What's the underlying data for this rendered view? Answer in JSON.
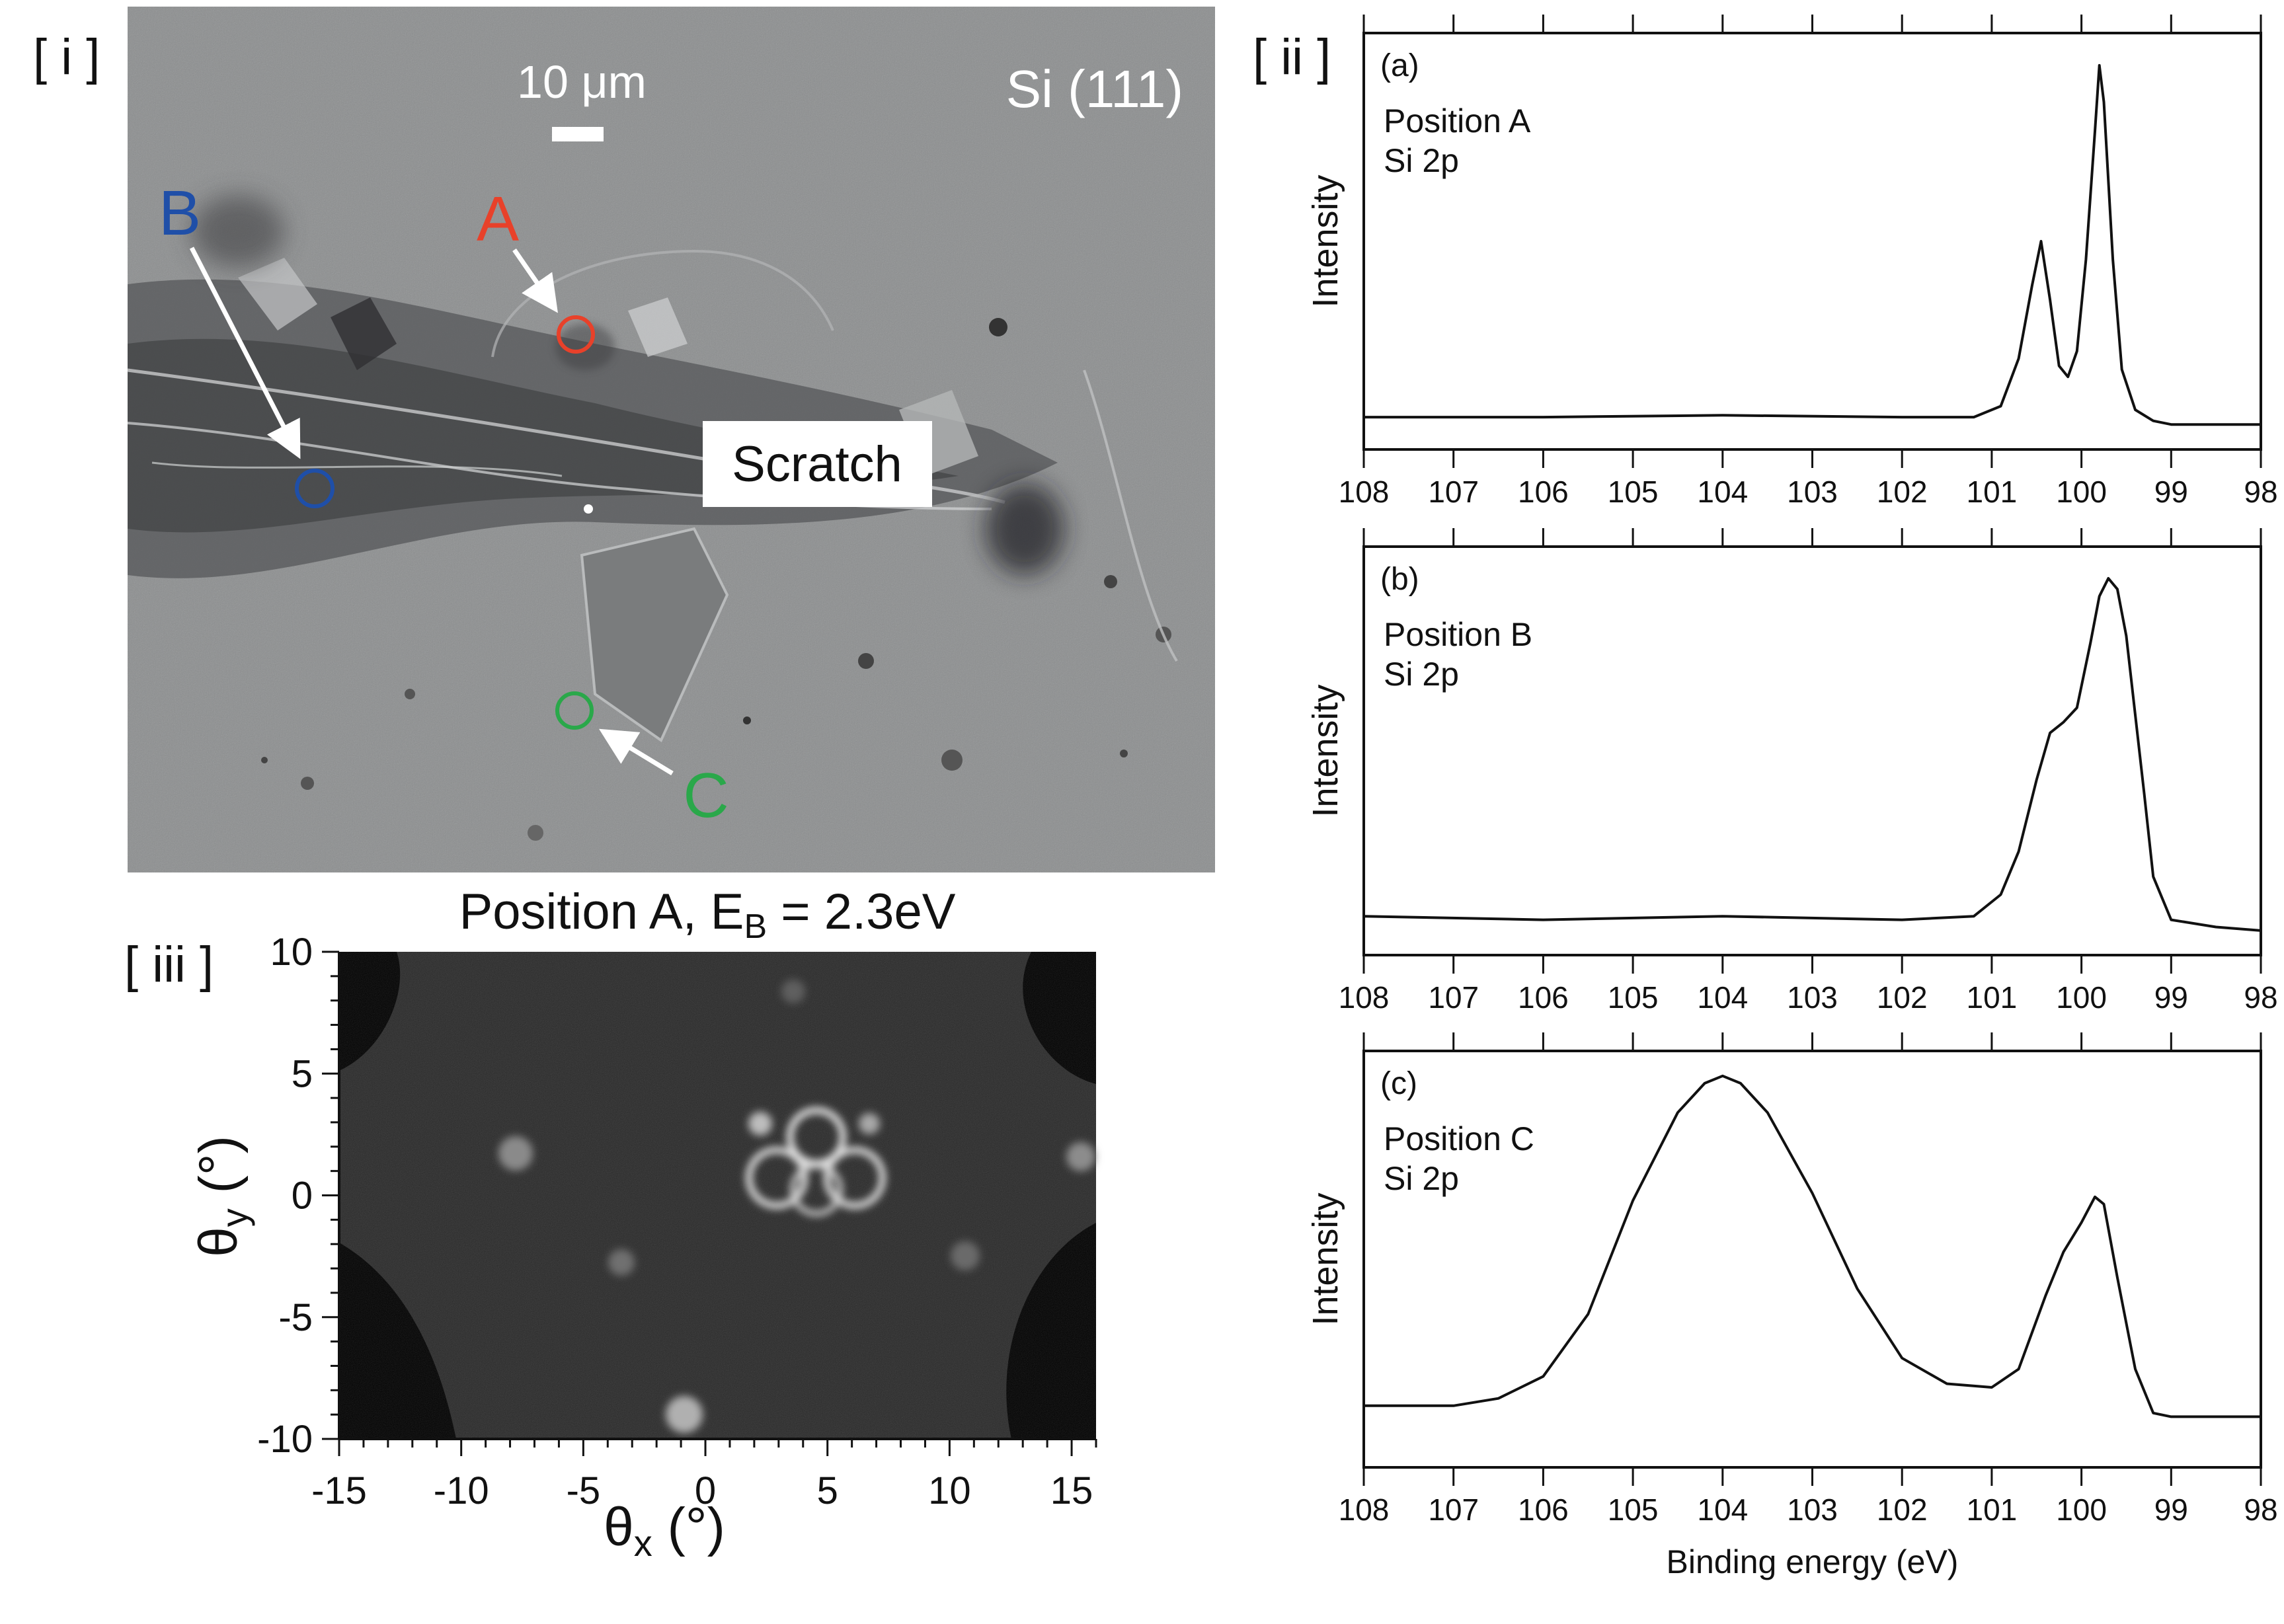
{
  "panel_labels": {
    "i": "[ i ]",
    "ii": "[ ii ]",
    "iii": "[ iii ]"
  },
  "micrograph": {
    "scale_bar_label": "10 μm",
    "crystal_label": "Si (111)",
    "scratch_label": "Scratch",
    "markers": [
      {
        "label": "A",
        "color": "#e8412a"
      },
      {
        "label": "B",
        "color": "#1f4fa8"
      },
      {
        "label": "C",
        "color": "#2aa84a"
      }
    ]
  },
  "diffraction_map": {
    "title": "Position A,  E",
    "title_sub": "B",
    "title_suffix": " = 2.3eV",
    "xlabel": "θ",
    "xlabel_sub": "x",
    "xlabel_unit": " (°)",
    "ylabel": "θ",
    "ylabel_sub": "y",
    "ylabel_unit": " (°)",
    "x_ticks": [
      "-15",
      "-10",
      "-5",
      "0",
      "5",
      "10",
      "15"
    ],
    "y_ticks": [
      "10",
      "5",
      "0",
      "-5",
      "-10"
    ],
    "xlim": [
      -15,
      16
    ],
    "ylim": [
      -10,
      10
    ]
  },
  "chart_data": [
    {
      "type": "line",
      "panel": "(a)",
      "annotation_lines": [
        "Position A",
        "Si 2p"
      ],
      "ylabel": "Intensity",
      "xlabel": "",
      "xlim": [
        108,
        98
      ],
      "x_ticks": [
        "108",
        "107",
        "106",
        "105",
        "104",
        "103",
        "102",
        "101",
        "100",
        "99",
        "98"
      ],
      "x": [
        108.0,
        106.0,
        104.0,
        102.0,
        101.2,
        100.9,
        100.7,
        100.55,
        100.45,
        100.35,
        100.25,
        100.15,
        100.05,
        99.95,
        99.85,
        99.8,
        99.75,
        99.65,
        99.55,
        99.4,
        99.2,
        99.0,
        98.0
      ],
      "y": [
        0.02,
        0.02,
        0.025,
        0.02,
        0.02,
        0.05,
        0.18,
        0.38,
        0.5,
        0.34,
        0.16,
        0.13,
        0.2,
        0.45,
        0.8,
        0.98,
        0.88,
        0.45,
        0.15,
        0.04,
        0.01,
        0.0,
        0.0
      ]
    },
    {
      "type": "line",
      "panel": "(b)",
      "annotation_lines": [
        "Position B",
        "Si 2p"
      ],
      "ylabel": "Intensity",
      "xlabel": "",
      "xlim": [
        108,
        98
      ],
      "x_ticks": [
        "108",
        "107",
        "106",
        "105",
        "104",
        "103",
        "102",
        "101",
        "100",
        "99",
        "98"
      ],
      "x": [
        108.0,
        106.0,
        104.0,
        102.0,
        101.2,
        100.9,
        100.7,
        100.5,
        100.35,
        100.2,
        100.05,
        99.9,
        99.8,
        99.7,
        99.6,
        99.5,
        99.4,
        99.3,
        99.2,
        99.0,
        98.5,
        98.0
      ],
      "y": [
        0.04,
        0.03,
        0.04,
        0.03,
        0.04,
        0.1,
        0.22,
        0.42,
        0.55,
        0.58,
        0.62,
        0.8,
        0.93,
        0.98,
        0.95,
        0.82,
        0.6,
        0.38,
        0.15,
        0.03,
        0.01,
        0.0
      ]
    },
    {
      "type": "line",
      "panel": "(c)",
      "annotation_lines": [
        "Position C",
        "Si 2p"
      ],
      "ylabel": "Intensity",
      "xlabel": "Binding energy (eV)",
      "xlim": [
        108,
        98
      ],
      "x_ticks": [
        "108",
        "107",
        "106",
        "105",
        "104",
        "103",
        "102",
        "101",
        "100",
        "99",
        "98"
      ],
      "x": [
        108.0,
        107.0,
        106.5,
        106.0,
        105.5,
        105.0,
        104.5,
        104.2,
        104.0,
        103.8,
        103.5,
        103.0,
        102.5,
        102.0,
        101.5,
        101.0,
        100.7,
        100.4,
        100.2,
        100.0,
        99.85,
        99.75,
        99.6,
        99.4,
        99.2,
        99.0,
        98.5,
        98.0
      ],
      "y": [
        0.1,
        0.1,
        0.12,
        0.18,
        0.35,
        0.66,
        0.9,
        0.98,
        1.0,
        0.98,
        0.9,
        0.68,
        0.42,
        0.23,
        0.16,
        0.15,
        0.2,
        0.4,
        0.52,
        0.6,
        0.67,
        0.65,
        0.45,
        0.2,
        0.08,
        0.07,
        0.07,
        0.07
      ]
    }
  ]
}
